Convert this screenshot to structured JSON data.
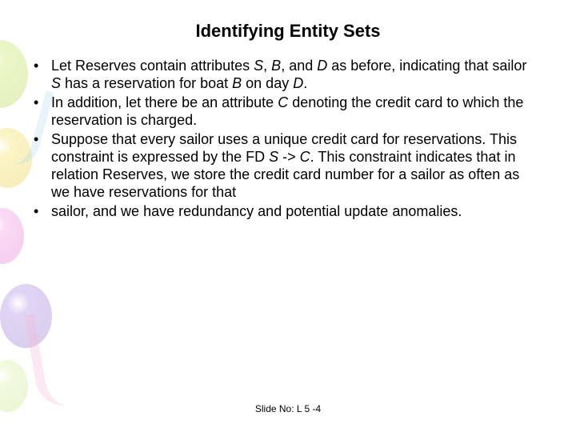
{
  "title": "Identifying Entity Sets",
  "bullets": [
    {
      "segments": [
        {
          "t": "Let Reserves contain attributes ",
          "i": false
        },
        {
          "t": "S",
          "i": true
        },
        {
          "t": ", ",
          "i": false
        },
        {
          "t": "B",
          "i": true
        },
        {
          "t": ", and ",
          "i": false
        },
        {
          "t": "D ",
          "i": true
        },
        {
          "t": "as before, indicating that sailor ",
          "i": false
        },
        {
          "t": "S ",
          "i": true
        },
        {
          "t": "has a reservation for boat ",
          "i": false
        },
        {
          "t": "B ",
          "i": true
        },
        {
          "t": "on day ",
          "i": false
        },
        {
          "t": "D",
          "i": true
        },
        {
          "t": ".",
          "i": false
        }
      ]
    },
    {
      "segments": [
        {
          "t": "In addition, let there be an attribute ",
          "i": false
        },
        {
          "t": "C ",
          "i": true
        },
        {
          "t": "denoting the credit card to which the reservation is charged.",
          "i": false
        }
      ]
    },
    {
      "segments": [
        {
          "t": "Suppose that every sailor uses a unique credit card for reservations. This constraint is expressed by the FD ",
          "i": false
        },
        {
          "t": "S ",
          "i": true
        },
        {
          "t": "-> ",
          "i": false
        },
        {
          "t": "C",
          "i": true
        },
        {
          "t": ". This constraint indicates that in relation Reserves, we store the credit card number for a sailor as often as we have reservations for that",
          "i": false
        }
      ]
    },
    {
      "segments": [
        {
          "t": "sailor, and we have redundancy and potential update anomalies.",
          "i": false
        }
      ]
    }
  ],
  "footer": "Slide No: L 5 -4",
  "style": {
    "title_fontsize": 22,
    "body_fontsize": 18,
    "footer_fontsize": 12,
    "text_color": "#000000",
    "background_color": "#ffffff",
    "balloon_colors": [
      "#c8e862",
      "#f5e05a",
      "#f098e0",
      "#a886e0",
      "#d8f0a0"
    ],
    "balloon_opacity": 0.35
  }
}
